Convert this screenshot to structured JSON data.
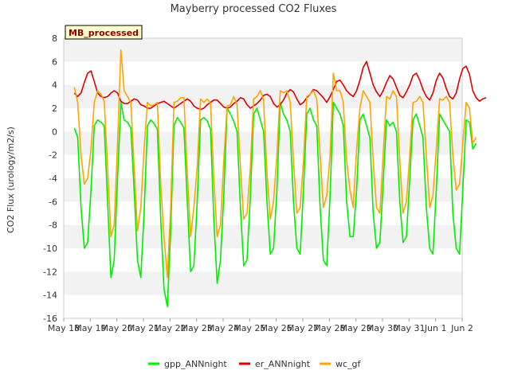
{
  "chart_data": {
    "type": "line",
    "title": "Mayberry processed CO2 Fluxes",
    "ylabel": "CO2 Flux (urology/m2/s)",
    "xlabel": "",
    "badge": "MB_processed",
    "ylim": [
      -16,
      8
    ],
    "yticks": [
      -16,
      -14,
      -12,
      -10,
      -8,
      -6,
      -4,
      -2,
      0,
      2,
      4,
      6,
      8
    ],
    "xlim": [
      "May 18",
      "Jun 2"
    ],
    "xtick_labels": [
      "May 18",
      "May 19",
      "May 20",
      "May 21",
      "May 22",
      "May 23",
      "May 24",
      "May 25",
      "May 26",
      "May 27",
      "May 28",
      "May 29",
      "May 30",
      "May 31",
      "Jun 1",
      "Jun 2"
    ],
    "grid": "horizontal bands",
    "legend_position": "bottom",
    "series": [
      {
        "name": "gpp_ANNnight",
        "color": "#00ee00",
        "day_start": 18.4,
        "points_per_day": 8,
        "values": [
          0.3,
          -0.5,
          -6.5,
          -10.0,
          -9.5,
          -5.0,
          0.5,
          1.0,
          0.8,
          0.5,
          -6.0,
          -12.5,
          -11.0,
          -4.0,
          2.5,
          1.0,
          0.8,
          0.3,
          -5.0,
          -11.0,
          -12.5,
          -7.0,
          0.5,
          1.0,
          0.7,
          0.2,
          -7.5,
          -13.5,
          -15.0,
          -8.5,
          0.5,
          1.2,
          0.8,
          0.3,
          -6.0,
          -12.0,
          -11.5,
          -6.0,
          1.0,
          1.2,
          0.9,
          0.2,
          -7.5,
          -13.0,
          -11.0,
          -5.5,
          2.0,
          1.5,
          0.9,
          0.0,
          -6.5,
          -11.5,
          -11.0,
          -5.5,
          1.5,
          2.0,
          1.0,
          0.0,
          -6.0,
          -10.5,
          -10.0,
          -5.0,
          2.5,
          1.5,
          1.0,
          0.0,
          -6.0,
          -10.0,
          -10.5,
          -5.0,
          1.5,
          2.0,
          1.0,
          0.5,
          -6.5,
          -11.0,
          -11.5,
          -5.5,
          2.5,
          2.0,
          1.5,
          0.5,
          -6.0,
          -9.0,
          -9.0,
          -5.0,
          1.0,
          1.5,
          0.5,
          -0.5,
          -7.0,
          -10.0,
          -9.5,
          -4.5,
          1.0,
          0.5,
          0.8,
          0.0,
          -6.0,
          -9.5,
          -9.0,
          -4.0,
          1.0,
          1.5,
          0.5,
          -0.5,
          -6.5,
          -10.0,
          -10.5,
          -5.0,
          1.5,
          1.0,
          0.5,
          0.0,
          -7.0,
          -10.0,
          -10.5,
          -5.0,
          1.0,
          0.8,
          -1.5,
          -1.0
        ]
      },
      {
        "name": "er_ANNnight",
        "color": "#dd0000",
        "day_start": 18.4,
        "points_per_day": 8,
        "values": [
          3.3,
          3.0,
          3.3,
          4.2,
          5.0,
          5.2,
          4.3,
          3.3,
          3.0,
          2.9,
          3.0,
          3.3,
          3.5,
          3.3,
          2.6,
          2.4,
          2.4,
          2.6,
          2.8,
          2.7,
          2.3,
          2.2,
          2.0,
          2.0,
          2.2,
          2.4,
          2.5,
          2.6,
          2.4,
          2.2,
          2.0,
          2.2,
          2.4,
          2.6,
          2.8,
          2.6,
          2.2,
          2.0,
          1.9,
          2.0,
          2.3,
          2.5,
          2.7,
          2.7,
          2.4,
          2.1,
          2.0,
          2.1,
          2.4,
          2.6,
          2.9,
          2.8,
          2.3,
          2.0,
          2.2,
          2.4,
          2.7,
          3.1,
          3.2,
          3.0,
          2.4,
          2.1,
          2.3,
          2.7,
          3.3,
          3.6,
          3.4,
          2.8,
          2.3,
          2.5,
          2.9,
          3.2,
          3.6,
          3.5,
          3.2,
          2.9,
          2.5,
          3.0,
          3.6,
          4.3,
          4.4,
          4.0,
          3.5,
          3.2,
          3.0,
          3.5,
          4.4,
          5.5,
          6.0,
          5.0,
          4.0,
          3.4,
          3.0,
          3.5,
          4.2,
          4.8,
          4.5,
          3.8,
          3.1,
          2.9,
          3.4,
          4.0,
          4.8,
          5.0,
          4.4,
          3.6,
          3.0,
          2.7,
          3.3,
          4.4,
          5.0,
          4.6,
          3.7,
          3.0,
          2.8,
          3.3,
          4.5,
          5.4,
          5.6,
          4.9,
          3.5,
          2.9,
          2.6,
          2.8,
          2.9
        ]
      },
      {
        "name": "wc_gf",
        "color": "#ffa500",
        "day_start": 18.4,
        "points_per_day": 8,
        "values": [
          3.8,
          2.5,
          -2.0,
          -4.5,
          -4.0,
          -1.5,
          2.5,
          3.5,
          3.2,
          2.6,
          -3.0,
          -9.0,
          -8.0,
          -1.0,
          7.0,
          3.5,
          3.0,
          2.5,
          -3.0,
          -8.5,
          -6.5,
          -1.5,
          2.5,
          2.2,
          2.3,
          2.5,
          -4.5,
          -9.0,
          -12.5,
          -6.5,
          2.5,
          2.6,
          2.9,
          2.9,
          -3.5,
          -9.0,
          -6.5,
          -3.0,
          2.8,
          2.5,
          2.8,
          2.4,
          -4.0,
          -9.0,
          -8.0,
          -2.5,
          2.2,
          2.3,
          3.0,
          2.3,
          -3.0,
          -7.5,
          -7.0,
          -3.0,
          2.8,
          3.0,
          3.5,
          2.7,
          -3.5,
          -7.5,
          -6.0,
          -2.0,
          3.5,
          3.3,
          3.5,
          2.5,
          -2.5,
          -7.0,
          -6.5,
          -2.5,
          3.0,
          3.2,
          3.5,
          2.8,
          -2.0,
          -6.5,
          -5.5,
          -2.0,
          5.0,
          3.5,
          3.5,
          2.5,
          -2.5,
          -5.0,
          -6.5,
          -1.5,
          2.0,
          3.5,
          3.0,
          2.5,
          -2.5,
          -6.5,
          -7.0,
          -2.0,
          3.0,
          2.8,
          3.5,
          3.0,
          -2.5,
          -7.0,
          -6.0,
          -2.0,
          2.5,
          2.6,
          3.0,
          2.5,
          -2.0,
          -6.5,
          -5.5,
          -1.5,
          2.8,
          2.7,
          3.0,
          2.5,
          -2.0,
          -5.0,
          -4.5,
          -1.0,
          2.5,
          2.0,
          -1.0,
          -0.5
        ]
      }
    ]
  }
}
